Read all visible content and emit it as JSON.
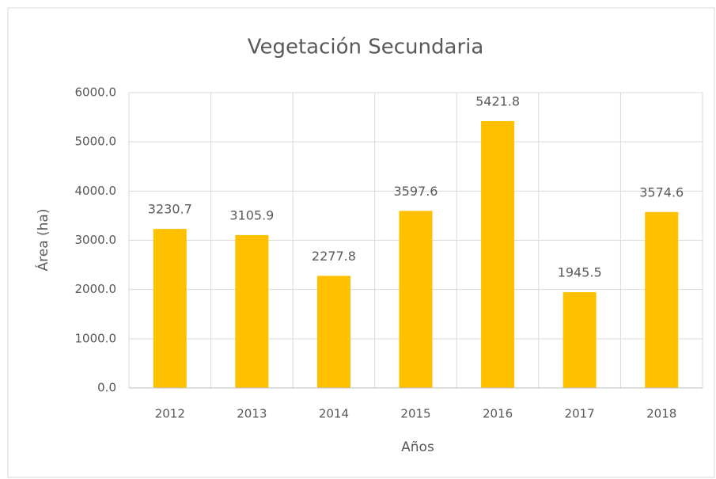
{
  "chart_data": {
    "type": "bar",
    "title": "Vegetación Secundaria",
    "x_label": "Años",
    "y_label": "Área (ha)",
    "categories": [
      "2012",
      "2013",
      "2014",
      "2015",
      "2016",
      "2017",
      "2018"
    ],
    "values": [
      3230.7,
      3105.9,
      2277.8,
      3597.6,
      5421.8,
      1945.5,
      3574.6
    ],
    "color": "#ffc000",
    "ylim": [
      0,
      6000
    ],
    "yticks": [
      {
        "value": 0,
        "label": "0.0"
      },
      {
        "value": 1000,
        "label": "1000.0"
      },
      {
        "value": 2000,
        "label": "2000.0"
      },
      {
        "value": 3000,
        "label": "3000.0"
      },
      {
        "value": 4000,
        "label": "4000.0"
      },
      {
        "value": 5000,
        "label": "5000.0"
      },
      {
        "value": 6000,
        "label": "6000.0"
      }
    ],
    "grid": true,
    "data_labels": true
  }
}
